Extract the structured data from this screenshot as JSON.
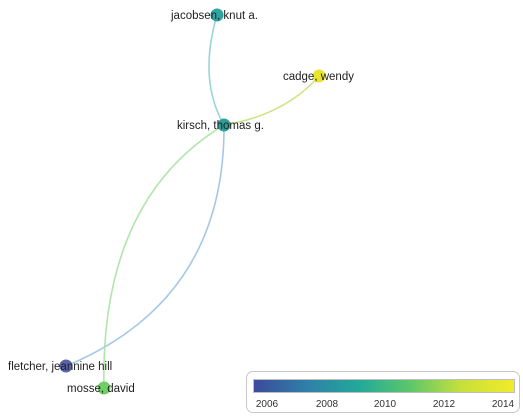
{
  "network": {
    "nodes": [
      {
        "id": "jacobsen",
        "label": "jacobsen, knut a.",
        "color": "#2fa4a3"
      },
      {
        "id": "cadge",
        "label": "cadge, wendy",
        "color": "#e8e52a"
      },
      {
        "id": "kirsch",
        "label": "kirsch, thomas g.",
        "color": "#2e9e96"
      },
      {
        "id": "fletcher",
        "label": "fletcher, jeannine hill",
        "color": "#5964a8"
      },
      {
        "id": "mosse",
        "label": "mosse, david",
        "color": "#6fcf64"
      }
    ],
    "links": [
      {
        "source": "jacobsen",
        "target": "kirsch",
        "color": "#8fd0d6"
      },
      {
        "source": "kirsch",
        "target": "cadge",
        "color": "#c6e27a"
      },
      {
        "source": "kirsch",
        "target": "fletcher",
        "color": "#9cc2e4"
      },
      {
        "source": "kirsch",
        "target": "mosse",
        "color": "#a9e2a2"
      }
    ]
  },
  "legend": {
    "ticks": [
      "2006",
      "2008",
      "2010",
      "2012",
      "2014"
    ],
    "gradient": [
      "#3b4a9a",
      "#2f7fa8",
      "#22a89a",
      "#5cc76a",
      "#c8e03a",
      "#f2ea2a"
    ]
  }
}
